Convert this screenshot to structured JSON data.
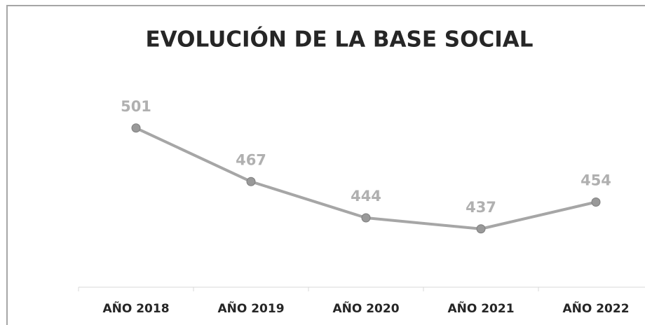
{
  "chart_data": {
    "type": "line",
    "title": "EVOLUCIÓN DE LA BASE SOCIAL",
    "categories": [
      "AÑO 2018",
      "AÑO 2019",
      "AÑO 2020",
      "AÑO 2021",
      "AÑO 2022"
    ],
    "values": [
      501,
      467,
      444,
      437,
      454
    ],
    "color": "#a6a6a6",
    "marker_color": "#999999",
    "label_color": "#b0b0b0",
    "ylim": [
      400,
      520
    ]
  }
}
